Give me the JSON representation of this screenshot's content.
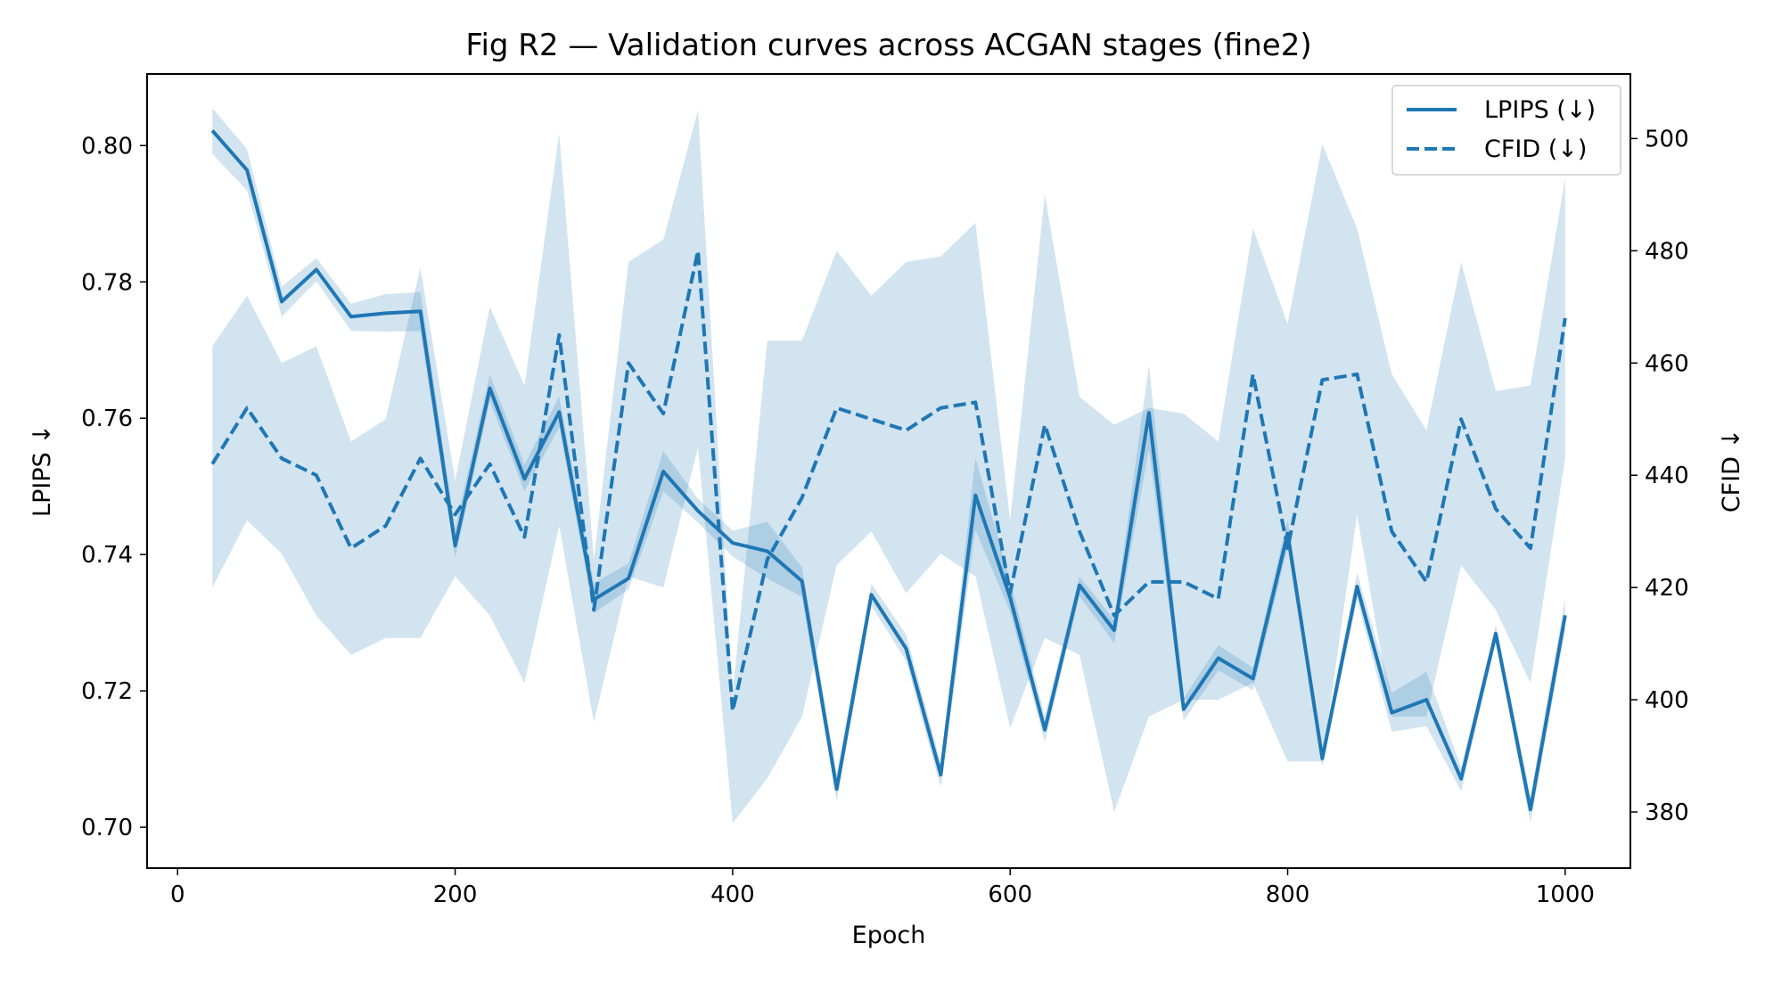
{
  "chart_data": {
    "type": "line",
    "title": "Fig R2 — Validation curves across ACGAN stages (fine2)",
    "xlabel": "Epoch",
    "ylabel_left": "LPIPS ↓",
    "ylabel_right": "CFID ↓",
    "xlim": [
      -22,
      1047
    ],
    "ylim_left": [
      0.694,
      0.8105
    ],
    "ylim_right": [
      370,
      511.5
    ],
    "xticks": [
      0,
      200,
      400,
      600,
      800,
      1000
    ],
    "yticks_left": [
      0.7,
      0.72,
      0.74,
      0.76,
      0.78,
      0.8
    ],
    "yticks_left_labels": [
      "0.70",
      "0.72",
      "0.74",
      "0.76",
      "0.78",
      "0.80"
    ],
    "yticks_right": [
      380,
      400,
      420,
      440,
      460,
      480,
      500
    ],
    "legend_position": "upper-right",
    "grid": false,
    "color": "#1f77b4",
    "band_color": "#1f77b4",
    "band_opacity": 0.2,
    "x": [
      25,
      50,
      75,
      100,
      125,
      150,
      175,
      200,
      225,
      250,
      275,
      300,
      325,
      350,
      375,
      400,
      425,
      450,
      475,
      500,
      525,
      550,
      575,
      600,
      625,
      650,
      675,
      700,
      725,
      750,
      775,
      800,
      825,
      850,
      875,
      900,
      925,
      950,
      975,
      1000
    ],
    "series": [
      {
        "name": "LPIPS (↓)",
        "axis": "left",
        "style": "solid",
        "values": [
          0.8022,
          0.7964,
          0.7771,
          0.7818,
          0.7749,
          0.7754,
          0.7757,
          0.7413,
          0.7644,
          0.7511,
          0.7609,
          0.7334,
          0.7365,
          0.7522,
          0.7464,
          0.7417,
          0.7405,
          0.7361,
          0.7056,
          0.7341,
          0.7262,
          0.7077,
          0.7487,
          0.7337,
          0.7143,
          0.7355,
          0.7289,
          0.7608,
          0.7173,
          0.7248,
          0.7218,
          0.7431,
          0.7101,
          0.7353,
          0.7168,
          0.7187,
          0.7071,
          0.7284,
          0.7026,
          0.7311
        ],
        "band_upper": [
          0.8055,
          0.7995,
          0.7793,
          0.7835,
          0.7768,
          0.7782,
          0.7785,
          0.7438,
          0.7664,
          0.7532,
          0.7632,
          0.7358,
          0.7387,
          0.7552,
          0.7482,
          0.7435,
          0.7448,
          0.7381,
          0.7078,
          0.7357,
          0.7283,
          0.7094,
          0.7542,
          0.7362,
          0.7163,
          0.7368,
          0.7304,
          0.7678,
          0.7189,
          0.7267,
          0.7234,
          0.7451,
          0.7115,
          0.7373,
          0.7197,
          0.7228,
          0.7088,
          0.7297,
          0.7046,
          0.7335
        ],
        "band_lower": [
          0.7988,
          0.7934,
          0.7749,
          0.7801,
          0.7728,
          0.7727,
          0.7728,
          0.7395,
          0.7625,
          0.7493,
          0.7587,
          0.7314,
          0.7349,
          0.7493,
          0.7447,
          0.7397,
          0.7365,
          0.7338,
          0.7038,
          0.7325,
          0.7244,
          0.7058,
          0.7436,
          0.7316,
          0.7125,
          0.7339,
          0.727,
          0.7555,
          0.7156,
          0.723,
          0.7201,
          0.741,
          0.7089,
          0.7334,
          0.714,
          0.7148,
          0.7053,
          0.7272,
          0.7006,
          0.7289
        ]
      },
      {
        "name": "CFID (↓)",
        "axis": "right",
        "style": "dashed",
        "values": [
          442,
          452,
          443,
          440,
          427,
          431,
          443,
          433,
          442,
          429,
          465,
          416,
          460,
          451,
          480,
          398,
          425,
          436,
          452,
          450,
          448,
          452,
          453,
          419,
          449,
          430,
          415,
          421,
          421,
          418,
          458,
          427,
          457,
          458,
          430,
          421,
          450,
          434,
          427,
          468
        ],
        "band_upper": [
          463,
          472,
          460,
          463,
          446,
          450,
          477,
          439,
          470,
          456,
          501,
          425,
          478,
          482,
          505,
          401,
          464,
          464,
          480,
          472,
          478,
          479,
          485,
          432,
          490,
          454,
          449,
          452,
          451,
          446,
          484,
          467,
          499,
          484,
          458,
          448,
          478,
          455,
          456,
          493
        ],
        "band_lower": [
          420,
          432,
          426,
          415,
          408,
          411,
          411,
          422,
          415,
          403,
          431,
          396,
          422,
          420,
          445,
          378,
          386,
          397,
          424,
          430,
          419,
          426,
          422,
          395,
          411,
          408,
          380,
          397,
          400,
          400,
          403,
          389,
          389,
          433,
          397,
          397,
          424,
          416,
          403,
          443
        ]
      }
    ]
  }
}
